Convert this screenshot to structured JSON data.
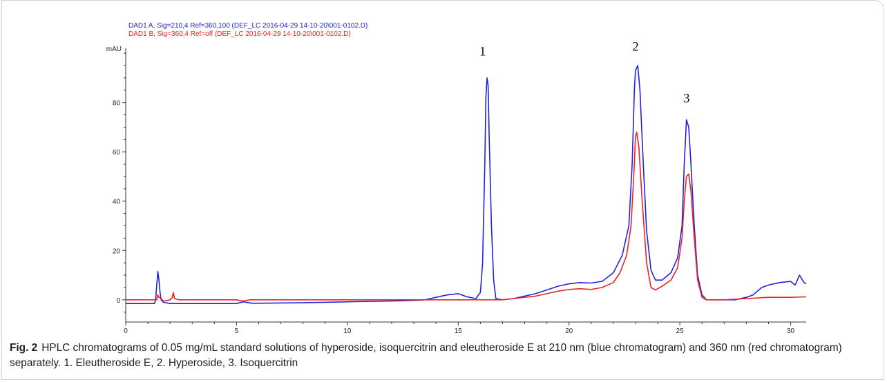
{
  "chart_data": {
    "type": "line",
    "legend": [
      {
        "text": "DAD1 A, Sig=210,4 Ref=360,100 (DEF_LC 2016-04-29 14-10-20\\001-0102.D)",
        "color": "#2222dd"
      },
      {
        "text": "DAD1 B, Sig=360,4 Ref=off (DEF_LC 2016-04-29 14-10-20\\001-0102.D)",
        "color": "#ee2222"
      }
    ],
    "ylabel": "mAU",
    "xlim": [
      0,
      30.7
    ],
    "ylim": [
      -9,
      102
    ],
    "xticks": [
      0,
      5,
      10,
      15,
      20,
      25,
      30
    ],
    "yticks": [
      0,
      20,
      40,
      60,
      80
    ],
    "peak_labels": [
      {
        "text": "1",
        "x": 16.1,
        "y": 99
      },
      {
        "text": "2",
        "x": 23.0,
        "y": 101
      },
      {
        "text": "3",
        "x": 25.3,
        "y": 80
      }
    ],
    "series": [
      {
        "color": "#2222dd",
        "points": [
          [
            0,
            -1.5
          ],
          [
            1.3,
            -1.5
          ],
          [
            1.35,
            0
          ],
          [
            1.4,
            6
          ],
          [
            1.45,
            11.5
          ],
          [
            1.5,
            8
          ],
          [
            1.55,
            3
          ],
          [
            1.6,
            0
          ],
          [
            1.7,
            -1
          ],
          [
            2,
            -1.5
          ],
          [
            5,
            -1.5
          ],
          [
            5.3,
            -0.8
          ],
          [
            5.7,
            -1.4
          ],
          [
            8,
            -1.2
          ],
          [
            10,
            -0.8
          ],
          [
            12.5,
            -0.4
          ],
          [
            13.5,
            0
          ],
          [
            14,
            1
          ],
          [
            14.5,
            2
          ],
          [
            15,
            2.5
          ],
          [
            15.4,
            1.2
          ],
          [
            15.8,
            0.5
          ],
          [
            16.0,
            3
          ],
          [
            16.1,
            15
          ],
          [
            16.2,
            55
          ],
          [
            16.25,
            82
          ],
          [
            16.3,
            90
          ],
          [
            16.35,
            87
          ],
          [
            16.4,
            65
          ],
          [
            16.5,
            30
          ],
          [
            16.6,
            8
          ],
          [
            16.7,
            0.5
          ],
          [
            17,
            0
          ],
          [
            17.5,
            0.5
          ],
          [
            18,
            1.5
          ],
          [
            18.5,
            2.5
          ],
          [
            19,
            4
          ],
          [
            19.5,
            5.5
          ],
          [
            20,
            6.5
          ],
          [
            20.5,
            7
          ],
          [
            21,
            6.8
          ],
          [
            21.5,
            7.5
          ],
          [
            22,
            11
          ],
          [
            22.4,
            18
          ],
          [
            22.7,
            30
          ],
          [
            22.85,
            55
          ],
          [
            22.95,
            85
          ],
          [
            23.0,
            93
          ],
          [
            23.1,
            95
          ],
          [
            23.2,
            85
          ],
          [
            23.35,
            55
          ],
          [
            23.5,
            28
          ],
          [
            23.7,
            12
          ],
          [
            23.9,
            8
          ],
          [
            24.2,
            8
          ],
          [
            24.6,
            11
          ],
          [
            24.9,
            17
          ],
          [
            25.1,
            30
          ],
          [
            25.2,
            55
          ],
          [
            25.3,
            73
          ],
          [
            25.4,
            70
          ],
          [
            25.5,
            55
          ],
          [
            25.65,
            30
          ],
          [
            25.8,
            10
          ],
          [
            26.0,
            2
          ],
          [
            26.2,
            0
          ],
          [
            27,
            0
          ],
          [
            27.5,
            0
          ],
          [
            28,
            1
          ],
          [
            28.3,
            2
          ],
          [
            28.7,
            5
          ],
          [
            29,
            6
          ],
          [
            29.5,
            7
          ],
          [
            30,
            7.5
          ],
          [
            30.2,
            6
          ],
          [
            30.4,
            10
          ],
          [
            30.6,
            7
          ],
          [
            30.7,
            6.5
          ]
        ]
      },
      {
        "color": "#ee2222",
        "points": [
          [
            0,
            0
          ],
          [
            1.4,
            0
          ],
          [
            1.45,
            2
          ],
          [
            1.5,
            1
          ],
          [
            1.6,
            0.5
          ],
          [
            1.7,
            -0.5
          ],
          [
            2.0,
            0
          ],
          [
            2.1,
            1
          ],
          [
            2.15,
            3
          ],
          [
            2.2,
            0.5
          ],
          [
            2.4,
            0
          ],
          [
            5,
            0
          ],
          [
            5.3,
            -0.5
          ],
          [
            5.6,
            0
          ],
          [
            10,
            0
          ],
          [
            16,
            0
          ],
          [
            17,
            0
          ],
          [
            17.5,
            0.5
          ],
          [
            18,
            1
          ],
          [
            18.5,
            1.5
          ],
          [
            19,
            2.5
          ],
          [
            19.5,
            3.5
          ],
          [
            20,
            4.2
          ],
          [
            20.5,
            4.5
          ],
          [
            21,
            4.2
          ],
          [
            21.5,
            5
          ],
          [
            22,
            7
          ],
          [
            22.3,
            11
          ],
          [
            22.6,
            18
          ],
          [
            22.8,
            30
          ],
          [
            22.95,
            55
          ],
          [
            23.0,
            66
          ],
          [
            23.05,
            68
          ],
          [
            23.15,
            62
          ],
          [
            23.3,
            40
          ],
          [
            23.5,
            15
          ],
          [
            23.7,
            5
          ],
          [
            23.9,
            4
          ],
          [
            24.2,
            5.5
          ],
          [
            24.6,
            8
          ],
          [
            24.9,
            13
          ],
          [
            25.1,
            25
          ],
          [
            25.2,
            40
          ],
          [
            25.3,
            50
          ],
          [
            25.4,
            51
          ],
          [
            25.5,
            44
          ],
          [
            25.65,
            25
          ],
          [
            25.8,
            8
          ],
          [
            26.0,
            1
          ],
          [
            26.2,
            0
          ],
          [
            27,
            0
          ],
          [
            28,
            0.5
          ],
          [
            29,
            1
          ],
          [
            30,
            1
          ],
          [
            30.7,
            1.2
          ]
        ]
      }
    ]
  },
  "caption": {
    "label": "Fig. 2",
    "text": "HPLC chromatograms of 0.05 mg/mL standard solutions of hyperoside, isoquercitrin and eleutheroside E at 210 nm (blue chromatogram) and 360 nm (red chromatogram) separately. 1. Eleutheroside E, 2. Hyperoside, 3. Isoquercitrin"
  }
}
